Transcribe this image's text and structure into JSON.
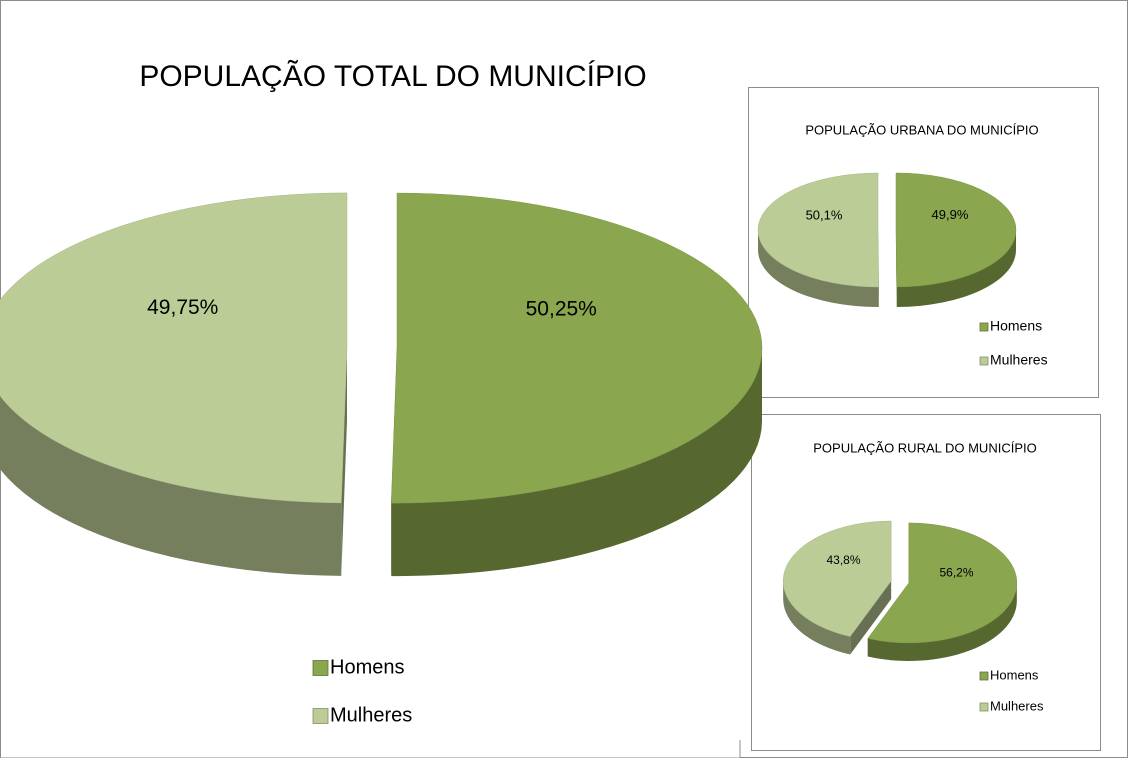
{
  "chart_data": [
    {
      "type": "pie",
      "title": "POPULAÇÃO TOTAL DO MUNICÍPIO",
      "categories": [
        "Homens",
        "Mulheres"
      ],
      "values": [
        50.25,
        49.75
      ],
      "value_labels": [
        "50,25%",
        "49,75%"
      ],
      "colors": [
        "#8aa64e",
        "#bccc96"
      ]
    },
    {
      "type": "pie",
      "title": "POPULAÇÃO URBANA DO MUNICÍPIO",
      "categories": [
        "Homens",
        "Mulheres"
      ],
      "values": [
        49.9,
        50.1
      ],
      "value_labels": [
        "49,9%",
        "50,1%"
      ],
      "colors": [
        "#8aa64e",
        "#bccc96"
      ]
    },
    {
      "type": "pie",
      "title": "POPULAÇÃO RURAL DO MUNICÍPIO",
      "categories": [
        "Homens",
        "Mulheres"
      ],
      "values": [
        56.2,
        43.8
      ],
      "value_labels": [
        "56,2%",
        "43,8%"
      ],
      "colors": [
        "#8aa64e",
        "#bccc96"
      ]
    }
  ]
}
